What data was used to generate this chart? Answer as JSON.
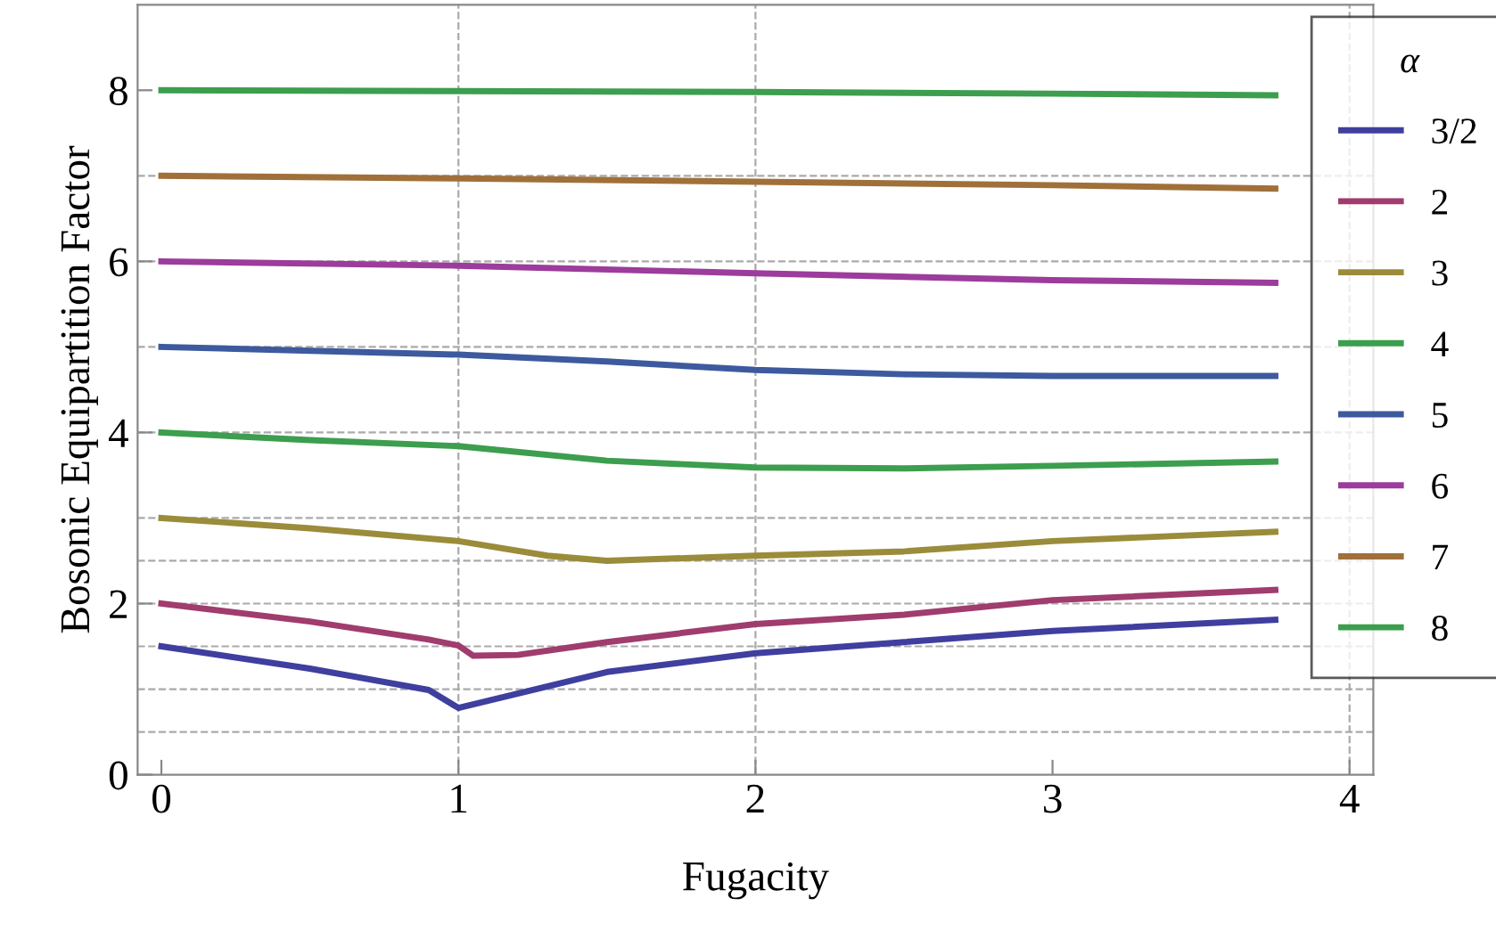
{
  "chart_data": {
    "type": "line",
    "xlabel": "Fugacity",
    "ylabel": "Bosonic Equipartition Factor",
    "legend_title": "α",
    "xlim": [
      -0.08,
      4.08
    ],
    "ylim": [
      0,
      9
    ],
    "xticks": [
      0,
      1,
      2,
      3,
      4
    ],
    "yticks": [
      0,
      2,
      4,
      6,
      8
    ],
    "grid": false,
    "legend": "right",
    "marker": "none",
    "line_style": "solid",
    "ref_lines": [
      {
        "axis": "x",
        "value": 1,
        "line_style": "dashed",
        "color": "#aaaaaa"
      },
      {
        "axis": "x",
        "value": 2,
        "line_style": "dashed",
        "color": "#aaaaaa"
      },
      {
        "axis": "x",
        "value": 4,
        "line_style": "dashed",
        "color": "#aaaaaa"
      },
      {
        "axis": "y",
        "value": 0.5,
        "line_style": "dashed",
        "color": "#aaaaaa"
      },
      {
        "axis": "y",
        "value": 1,
        "line_style": "dashed",
        "color": "#aaaaaa"
      },
      {
        "axis": "y",
        "value": 1.5,
        "line_style": "dashed",
        "color": "#aaaaaa"
      },
      {
        "axis": "y",
        "value": 2,
        "line_style": "dashed",
        "color": "#aaaaaa"
      },
      {
        "axis": "y",
        "value": 2.5,
        "line_style": "dashed",
        "color": "#aaaaaa"
      },
      {
        "axis": "y",
        "value": 3,
        "line_style": "dashed",
        "color": "#aaaaaa"
      },
      {
        "axis": "y",
        "value": 4,
        "line_style": "dashed",
        "color": "#aaaaaa"
      },
      {
        "axis": "y",
        "value": 5,
        "line_style": "dashed",
        "color": "#aaaaaa"
      },
      {
        "axis": "y",
        "value": 6,
        "line_style": "dashed",
        "color": "#aaaaaa"
      },
      {
        "axis": "y",
        "value": 7,
        "line_style": "dashed",
        "color": "#aaaaaa"
      }
    ],
    "series": [
      {
        "name": "3/2",
        "color": "#3f3f9f",
        "x": [
          0,
          0.5,
          0.9,
          1.0,
          1.5,
          2,
          2.5,
          3,
          3.75
        ],
        "values": [
          1.5,
          1.24,
          0.99,
          0.78,
          1.2,
          1.42,
          1.55,
          1.68,
          1.81
        ]
      },
      {
        "name": "2",
        "color": "#a03c6e",
        "x": [
          0,
          0.5,
          0.9,
          1.0,
          1.05,
          1.2,
          1.5,
          2,
          2.5,
          3,
          3.75
        ],
        "values": [
          2.0,
          1.79,
          1.58,
          1.51,
          1.39,
          1.4,
          1.55,
          1.76,
          1.87,
          2.04,
          2.16
        ]
      },
      {
        "name": "3",
        "color": "#9a8c3a",
        "x": [
          0,
          0.5,
          1,
          1.3,
          1.5,
          2,
          2.5,
          3,
          3.75
        ],
        "values": [
          3.0,
          2.88,
          2.73,
          2.56,
          2.5,
          2.56,
          2.61,
          2.73,
          2.84
        ]
      },
      {
        "name": "4",
        "color": "#3c9e4e",
        "x": [
          0,
          0.5,
          1,
          1.5,
          2,
          2.5,
          3,
          3.75
        ],
        "values": [
          4.0,
          3.91,
          3.84,
          3.67,
          3.59,
          3.58,
          3.61,
          3.66
        ]
      },
      {
        "name": "5",
        "color": "#3d5a9e",
        "x": [
          0,
          1,
          1.5,
          2,
          2.5,
          3,
          3.75
        ],
        "values": [
          5.0,
          4.91,
          4.83,
          4.73,
          4.68,
          4.66,
          4.66
        ]
      },
      {
        "name": "6",
        "color": "#9c3c9c",
        "x": [
          0,
          1,
          2,
          3,
          3.75
        ],
        "values": [
          6.0,
          5.95,
          5.86,
          5.78,
          5.75
        ]
      },
      {
        "name": "7",
        "color": "#a0703a",
        "x": [
          0,
          1,
          2,
          3,
          3.75
        ],
        "values": [
          7.0,
          6.97,
          6.93,
          6.89,
          6.85
        ]
      },
      {
        "name": "8",
        "color": "#3c9e4e",
        "x": [
          0,
          1,
          2,
          3,
          3.75
        ],
        "values": [
          8.0,
          7.99,
          7.98,
          7.96,
          7.94
        ]
      }
    ]
  }
}
